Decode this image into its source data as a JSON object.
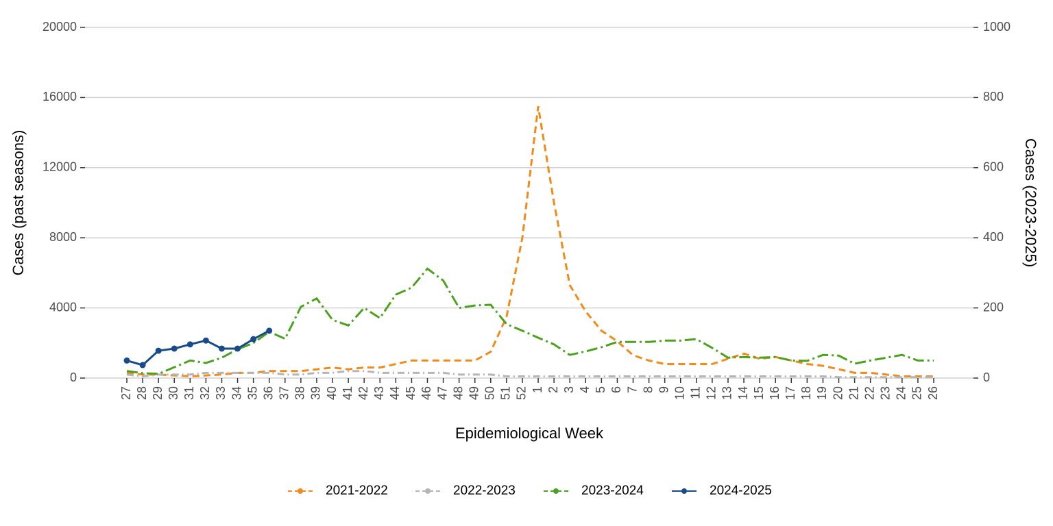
{
  "chart_data": {
    "type": "line",
    "x_label": "Epidemiological Week",
    "y_label": "Cases (past seasons)",
    "y2_label": "Cases (2023-2025)",
    "categories": [
      "27",
      "28",
      "29",
      "30",
      "31",
      "32",
      "33",
      "34",
      "35",
      "36",
      "37",
      "38",
      "39",
      "40",
      "41",
      "42",
      "43",
      "44",
      "45",
      "46",
      "47",
      "48",
      "49",
      "50",
      "51",
      "52",
      "1",
      "2",
      "3",
      "4",
      "5",
      "6",
      "7",
      "8",
      "9",
      "10",
      "11",
      "12",
      "13",
      "14",
      "15",
      "16",
      "17",
      "18",
      "19",
      "20",
      "21",
      "22",
      "23",
      "24",
      "25",
      "26"
    ],
    "ylim": [
      0,
      20000
    ],
    "yticks": [
      0,
      4000,
      8000,
      12000,
      16000,
      20000
    ],
    "y2lim": [
      0,
      1000
    ],
    "y2ticks": [
      0,
      200,
      400,
      600,
      800,
      1000
    ],
    "grid": true,
    "legend": "bottom",
    "series": [
      {
        "name": "2021-2022",
        "color": "#f28a1a",
        "linestyle": "dashed",
        "axis": "y",
        "values": [
          300,
          200,
          200,
          150,
          100,
          150,
          200,
          300,
          300,
          400,
          400,
          400,
          500,
          600,
          500,
          600,
          600,
          800,
          1000,
          1000,
          1000,
          1000,
          1000,
          1500,
          3500,
          8000,
          15500,
          10000,
          5300,
          3800,
          2700,
          2100,
          1300,
          1000,
          800,
          800,
          800,
          800,
          1100,
          1400,
          1100,
          1200,
          1000,
          800,
          700,
          500,
          300,
          300,
          200,
          100,
          100,
          100
        ]
      },
      {
        "name": "2022-2023",
        "color": "#b5b5b5",
        "linestyle": "dashdot",
        "axis": "y",
        "values": [
          200,
          100,
          200,
          200,
          200,
          300,
          300,
          300,
          300,
          300,
          200,
          200,
          300,
          300,
          400,
          400,
          300,
          300,
          300,
          300,
          300,
          200,
          200,
          200,
          100,
          100,
          100,
          100,
          100,
          100,
          100,
          100,
          100,
          100,
          100,
          100,
          100,
          100,
          100,
          100,
          100,
          100,
          100,
          100,
          100,
          50,
          50,
          50,
          50,
          50,
          50,
          50
        ]
      },
      {
        "name": "2023-2024",
        "color": "#4ba21e",
        "linestyle": "longdashdot",
        "axis": "y2",
        "values": [
          20,
          14,
          12,
          31,
          50,
          43,
          58,
          82,
          100,
          132,
          112,
          203,
          227,
          166,
          150,
          200,
          171,
          238,
          258,
          312,
          278,
          200,
          207,
          209,
          154,
          135,
          115,
          96,
          66,
          76,
          88,
          103,
          103,
          103,
          107,
          107,
          111,
          86,
          58,
          60,
          58,
          60,
          50,
          49,
          66,
          64,
          41,
          50,
          58,
          66,
          50,
          50
        ]
      },
      {
        "name": "2024-2025",
        "color": "#174b8c",
        "linestyle": "solid",
        "axis": "y2",
        "marker": true,
        "values": [
          50,
          37,
          78,
          84,
          96,
          107,
          84,
          84,
          111,
          135,
          null,
          null,
          null,
          null,
          null,
          null,
          null,
          null,
          null,
          null,
          null,
          null,
          null,
          null,
          null,
          null,
          null,
          null,
          null,
          null,
          null,
          null,
          null,
          null,
          null,
          null,
          null,
          null,
          null,
          null,
          null,
          null,
          null,
          null,
          null,
          null,
          null,
          null,
          null,
          null,
          null,
          null
        ]
      }
    ]
  }
}
